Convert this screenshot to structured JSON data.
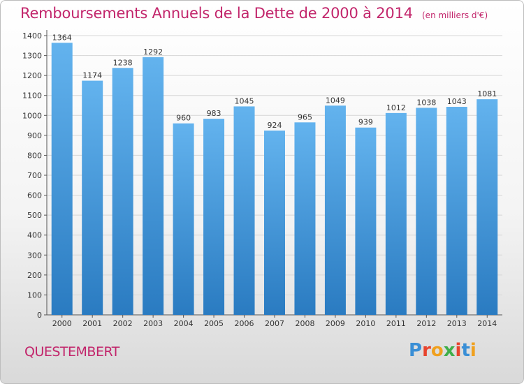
{
  "header": {
    "title": "Remboursements Annuels de la Dette de 2000 à 2014",
    "unit": "(en milliers d'€)"
  },
  "footer": {
    "commune": "QUESTEMBERT",
    "logo_text": "Proxiti"
  },
  "colors": {
    "title": "#c2256b",
    "bar_top": "#63b3ee",
    "bar_bottom": "#2a7bc1",
    "grid": "#d6d6d6",
    "axis": "#555555"
  },
  "chart_data": {
    "type": "bar",
    "title": "Remboursements Annuels de la Dette de 2000 à 2014",
    "ylabel": "",
    "xlabel": "",
    "categories": [
      "2000",
      "2001",
      "2002",
      "2003",
      "2004",
      "2005",
      "2006",
      "2007",
      "2008",
      "2009",
      "2010",
      "2011",
      "2012",
      "2013",
      "2014"
    ],
    "values": [
      1364,
      1174,
      1238,
      1292,
      960,
      983,
      1045,
      924,
      965,
      1049,
      939,
      1012,
      1038,
      1043,
      1081
    ],
    "ylim": [
      0,
      1400
    ],
    "yticks": [
      0,
      100,
      200,
      300,
      400,
      500,
      600,
      700,
      800,
      900,
      1000,
      1100,
      1200,
      1300,
      1400
    ],
    "grid": true,
    "legend": "none"
  }
}
